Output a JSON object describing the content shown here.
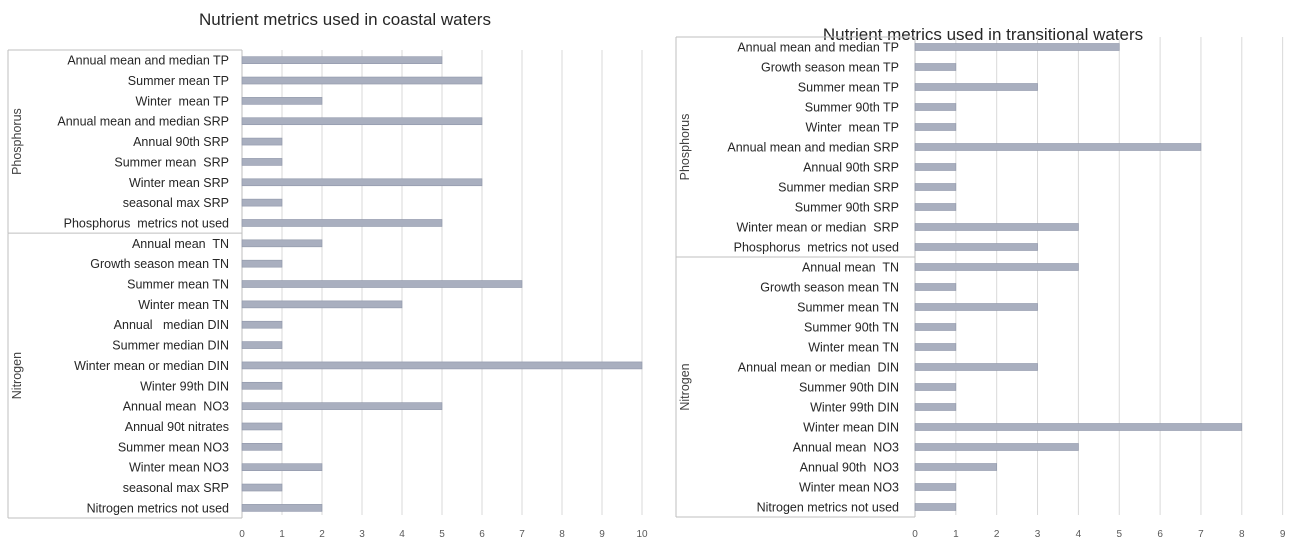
{
  "chart_data": [
    {
      "type": "bar",
      "orientation": "horizontal",
      "title": "Nutrient metrics used in coastal waters",
      "xlim": [
        0,
        10
      ],
      "x_ticks": [
        0,
        1,
        2,
        3,
        4,
        5,
        6,
        7,
        8,
        9,
        10
      ],
      "grid": true,
      "bar_color": "#a9afbf",
      "groups": [
        {
          "name": "Phosphorus",
          "categories": [
            "Annual mean and median TP",
            "Summer mean TP",
            "Winter  mean TP",
            "Annual mean and median SRP",
            "Annual 90th SRP",
            "Summer mean  SRP",
            "Winter mean SRP",
            "seasonal max SRP",
            "Phosphorus  metrics not used"
          ],
          "values": [
            5,
            6,
            2,
            6,
            1,
            1,
            6,
            1,
            5
          ]
        },
        {
          "name": "Nitrogen",
          "categories": [
            "Annual mean  TN",
            "Growth season mean TN",
            "Summer mean TN",
            "Winter mean TN",
            "Annual   median DIN",
            "Summer median DIN",
            "Winter mean or median DIN",
            "Winter 99th DIN",
            "Annual mean  NO3",
            "Annual 90t nitrates",
            "Summer mean NO3",
            "Winter mean NO3",
            "seasonal max SRP",
            "Nitrogen metrics not used"
          ],
          "values": [
            2,
            1,
            7,
            4,
            1,
            1,
            10,
            1,
            5,
            1,
            1,
            2,
            1,
            2
          ]
        }
      ]
    },
    {
      "type": "bar",
      "orientation": "horizontal",
      "title": "Nutrient metrics used in transitional waters",
      "xlim": [
        0,
        9
      ],
      "x_ticks": [
        0,
        1,
        2,
        3,
        4,
        5,
        6,
        7,
        8,
        9
      ],
      "grid": true,
      "bar_color": "#a9afbf",
      "groups": [
        {
          "name": "Phosphorus",
          "categories": [
            "Annual mean and median TP",
            "Growth season mean TP",
            "Summer mean TP",
            "Summer 90th TP",
            "Winter  mean TP",
            "Annual mean and median SRP",
            "Annual 90th SRP",
            "Summer median SRP",
            "Summer 90th SRP",
            "Winter mean or median  SRP",
            "Phosphorus  metrics not used"
          ],
          "values": [
            5,
            1,
            3,
            1,
            1,
            7,
            1,
            1,
            1,
            4,
            3
          ]
        },
        {
          "name": "Nitrogen",
          "categories": [
            "Annual mean  TN",
            "Growth season mean TN",
            "Summer mean TN",
            "Summer 90th TN",
            "Winter mean TN",
            "Annual mean or median  DIN",
            "Summer 90th DIN",
            "Winter 99th DIN",
            "Winter mean DIN",
            "Annual mean  NO3",
            "Annual 90th  NO3",
            "Winter mean NO3",
            "Nitrogen metrics not used"
          ],
          "values": [
            4,
            1,
            3,
            1,
            1,
            3,
            1,
            1,
            8,
            4,
            2,
            1,
            1
          ]
        }
      ]
    }
  ]
}
